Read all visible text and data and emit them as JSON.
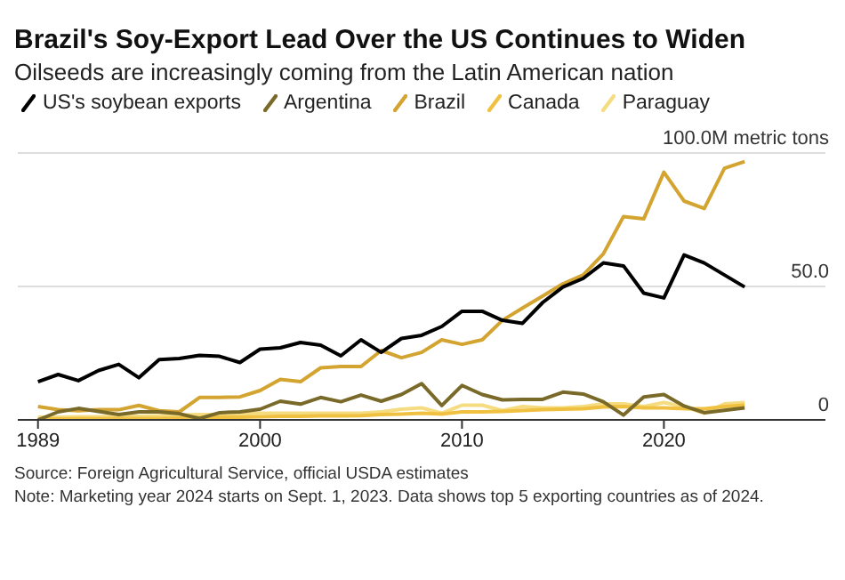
{
  "chart_data": {
    "type": "line",
    "title": "Brazil's Soy-Export Lead Over the US Continues to Widen",
    "subtitle": "Oilseeds are increasingly coming from the Latin American nation",
    "x": [
      1989,
      1990,
      1991,
      1992,
      1993,
      1994,
      1995,
      1996,
      1997,
      1998,
      1999,
      2000,
      2001,
      2002,
      2003,
      2004,
      2005,
      2006,
      2007,
      2008,
      2009,
      2010,
      2011,
      2012,
      2013,
      2014,
      2015,
      2016,
      2017,
      2018,
      2019,
      2020,
      2021,
      2022,
      2023,
      2024
    ],
    "series": [
      {
        "name": "US's soybean exports",
        "color": "#000000",
        "values": [
          14.3,
          17,
          14.7,
          18.5,
          20.8,
          15.8,
          22.6,
          23,
          24.2,
          23.8,
          21.5,
          26.5,
          27,
          29,
          28,
          24,
          30,
          25.3,
          30.5,
          31.7,
          35,
          40.7,
          40.7,
          37.3,
          36.2,
          44,
          49.8,
          53,
          58.8,
          57.7,
          47.5,
          45.7,
          61.8,
          58.8,
          54.3,
          49.8
        ]
      },
      {
        "name": "Argentina",
        "color": "#7a6a2a",
        "values": [
          0,
          3,
          4.3,
          3.2,
          2,
          3,
          3,
          2.3,
          0.5,
          2.7,
          3,
          4,
          7,
          5.9,
          8.4,
          6.8,
          9.3,
          7,
          9.5,
          13.6,
          5.4,
          12.9,
          9.5,
          7.5,
          7.7,
          7.7,
          10.4,
          9.7,
          6.8,
          1.8,
          8.6,
          9.5,
          5.2,
          2.7,
          3.6,
          4.5
        ]
      },
      {
        "name": "Brazil",
        "color": "#d4a431",
        "values": [
          5,
          3.8,
          3.4,
          3.8,
          3.8,
          5.4,
          3.4,
          3,
          8.4,
          8.4,
          8.6,
          11,
          15.2,
          14.3,
          19.5,
          20,
          20,
          26,
          23.3,
          25.3,
          30,
          28.3,
          30,
          37.3,
          41.9,
          46.4,
          51,
          54.3,
          62.2,
          76.2,
          75.3,
          92.8,
          82,
          79.2,
          94.3,
          96.8
        ]
      },
      {
        "name": "Canada",
        "color": "#f0c040",
        "values": [
          0.3,
          0.3,
          0.4,
          0.4,
          0.5,
          0.5,
          0.5,
          0.7,
          0.8,
          1,
          1,
          1.2,
          1.3,
          1.3,
          1.5,
          1.5,
          1.6,
          2,
          2.2,
          2.5,
          2.2,
          3,
          3,
          3.2,
          3.5,
          3.8,
          4,
          4.2,
          4.8,
          5,
          4.5,
          4.5,
          4.2,
          4.2,
          5,
          5.5
        ]
      },
      {
        "name": "Paraguay",
        "color": "#f5dc80",
        "values": [
          1,
          1,
          1.2,
          1.2,
          1.3,
          1.3,
          1.5,
          1.8,
          2,
          2,
          2.2,
          2.5,
          2.5,
          2.5,
          2.5,
          2.5,
          2.5,
          3,
          4,
          4.5,
          2.5,
          5.5,
          5.5,
          3.5,
          5,
          4.5,
          4.5,
          5,
          6,
          6,
          5,
          6.5,
          5,
          2.5,
          6,
          6.5
        ]
      }
    ],
    "xlim": [
      1988,
      2028
    ],
    "xticks": [
      1989,
      2000,
      2010,
      2020
    ],
    "ylim": [
      0,
      100
    ],
    "yticks": [
      0,
      {
        "value": 50,
        "label": "50.0"
      },
      {
        "value": 100,
        "label": "100.0M metric tons"
      }
    ],
    "grid": "y",
    "legend": "top",
    "marker": "none",
    "line_style": "solid",
    "annotations": [
      "Source: Foreign Agricultural Service, official USDA estimates",
      "Note: Marketing year 2024 starts on Sept. 1, 2023. Data shows top 5 exporting countries as of 2024."
    ]
  }
}
